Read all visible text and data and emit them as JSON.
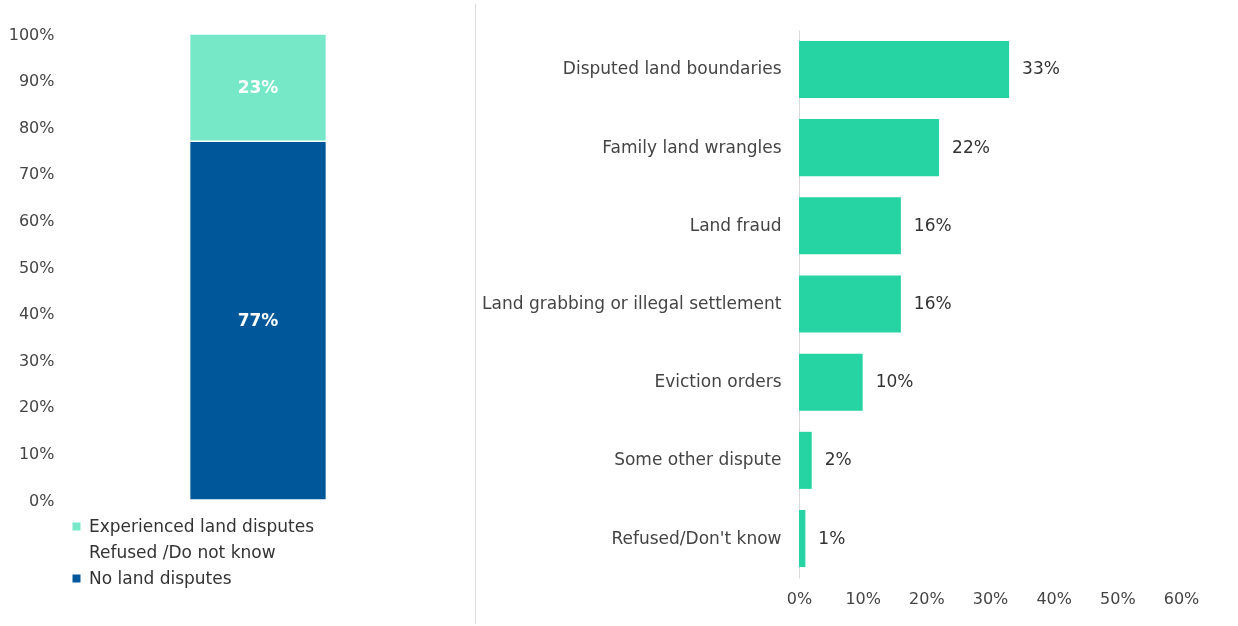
{
  "chart_data": [
    {
      "type": "bar",
      "stacked": true,
      "categories": [
        null
      ],
      "series": [
        {
          "name": "No land disputes",
          "color": "#00589b",
          "values": [
            77
          ],
          "value_labels": [
            "77%"
          ]
        },
        {
          "name": "Refused /Do not know",
          "values": [
            null
          ],
          "value_labels": [
            null
          ]
        },
        {
          "name": "Experienced land disputes",
          "color": "#76e8c8",
          "values": [
            23
          ],
          "value_labels": [
            "23%"
          ]
        }
      ],
      "ylim": [
        0,
        100
      ],
      "yticks": [
        {
          "value": 0,
          "label": "0%"
        },
        {
          "value": 10,
          "label": "10%"
        },
        {
          "value": 20,
          "label": "20%"
        },
        {
          "value": 30,
          "label": "30%"
        },
        {
          "value": 40,
          "label": "40%"
        },
        {
          "value": 50,
          "label": "50%"
        },
        {
          "value": 60,
          "label": "60%"
        },
        {
          "value": 70,
          "label": "70%"
        },
        {
          "value": 80,
          "label": "80%"
        },
        {
          "value": 90,
          "label": "90%"
        },
        {
          "value": 100,
          "label": "100%"
        }
      ],
      "legend": "bottom"
    },
    {
      "type": "bar",
      "orientation": "horizontal",
      "categories": [
        "Disputed  land boundaries",
        "Family land wrangles",
        "Land fraud ",
        "Land grabbing or illegal settlement",
        "Eviction orders",
        "Some other dispute",
        "Refused/Don't know"
      ],
      "values": [
        33,
        22,
        16,
        16,
        10,
        2,
        1
      ],
      "color": "#26d3a2",
      "value_labels": [
        "33%",
        "22%",
        "16%",
        "16%",
        "10%",
        "2%",
        "1%"
      ],
      "xlim": [
        0,
        60
      ],
      "xticks": [
        {
          "value": 0,
          "label": "0%"
        },
        {
          "value": 10,
          "label": "10%"
        },
        {
          "value": 20,
          "label": "20%"
        },
        {
          "value": 30,
          "label": "30%"
        },
        {
          "value": 40,
          "label": "40%"
        },
        {
          "value": 50,
          "label": "50%"
        },
        {
          "value": 60,
          "label": "60%"
        }
      ]
    }
  ]
}
